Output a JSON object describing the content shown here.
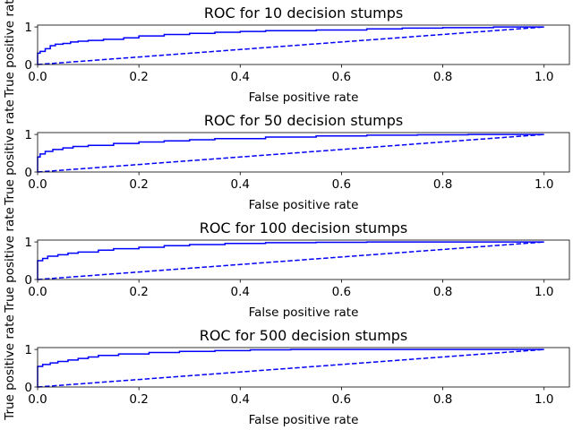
{
  "chart_data": [
    {
      "type": "line",
      "title": "ROC for 10 decision stumps",
      "xlabel": "False positive rate",
      "ylabel": "True positive rate",
      "xlim": [
        0,
        1.05
      ],
      "ylim": [
        0,
        1.05
      ],
      "xticks": [
        "0.0",
        "0.2",
        "0.4",
        "0.6",
        "0.8",
        "1.0"
      ],
      "yticks": [
        "0",
        "1"
      ],
      "grid": false,
      "series": [
        {
          "style": "solid",
          "color": "#0000ff",
          "x": [
            0,
            0,
            0.005,
            0.005,
            0.015,
            0.015,
            0.025,
            0.025,
            0.035,
            0.035,
            0.05,
            0.05,
            0.065,
            0.065,
            0.08,
            0.08,
            0.1,
            0.1,
            0.13,
            0.13,
            0.17,
            0.17,
            0.2,
            0.2,
            0.25,
            0.25,
            0.3,
            0.3,
            0.35,
            0.35,
            0.4,
            0.4,
            0.45,
            0.45,
            0.55,
            0.55,
            0.65,
            0.65,
            0.72,
            0.72,
            0.8,
            0.8,
            0.9,
            0.9,
            1.0
          ],
          "y": [
            0,
            0.3,
            0.3,
            0.35,
            0.35,
            0.42,
            0.42,
            0.5,
            0.5,
            0.54,
            0.54,
            0.56,
            0.56,
            0.6,
            0.6,
            0.62,
            0.62,
            0.64,
            0.64,
            0.67,
            0.67,
            0.71,
            0.71,
            0.76,
            0.76,
            0.8,
            0.8,
            0.83,
            0.83,
            0.86,
            0.86,
            0.88,
            0.88,
            0.9,
            0.9,
            0.92,
            0.92,
            0.95,
            0.95,
            0.97,
            0.97,
            0.98,
            0.98,
            1.0,
            1.0
          ]
        },
        {
          "style": "dashed",
          "color": "#0000ff",
          "x": [
            0,
            1.0
          ],
          "y": [
            0,
            1.0
          ]
        }
      ]
    },
    {
      "type": "line",
      "title": "ROC for 50 decision stumps",
      "xlabel": "False positive rate",
      "ylabel": "True positive rate",
      "xlim": [
        0,
        1.05
      ],
      "ylim": [
        0,
        1.05
      ],
      "xticks": [
        "0.0",
        "0.2",
        "0.4",
        "0.6",
        "0.8",
        "1.0"
      ],
      "yticks": [
        "0",
        "1"
      ],
      "grid": false,
      "series": [
        {
          "style": "solid",
          "color": "#0000ff",
          "x": [
            0,
            0,
            0.005,
            0.005,
            0.015,
            0.015,
            0.03,
            0.03,
            0.05,
            0.05,
            0.07,
            0.07,
            0.1,
            0.1,
            0.15,
            0.15,
            0.2,
            0.2,
            0.25,
            0.25,
            0.3,
            0.3,
            0.35,
            0.35,
            0.45,
            0.45,
            0.55,
            0.55,
            0.65,
            0.65,
            0.75,
            0.75,
            0.85,
            0.85,
            1.0
          ],
          "y": [
            0,
            0.4,
            0.4,
            0.48,
            0.48,
            0.55,
            0.55,
            0.6,
            0.6,
            0.64,
            0.64,
            0.68,
            0.68,
            0.71,
            0.71,
            0.76,
            0.76,
            0.8,
            0.8,
            0.83,
            0.83,
            0.86,
            0.86,
            0.89,
            0.89,
            0.93,
            0.93,
            0.96,
            0.96,
            0.98,
            0.98,
            0.99,
            0.99,
            1.0,
            1.0
          ]
        },
        {
          "style": "dashed",
          "color": "#0000ff",
          "x": [
            0,
            1.0
          ],
          "y": [
            0,
            1.0
          ]
        }
      ]
    },
    {
      "type": "line",
      "title": "ROC for 100 decision stumps",
      "xlabel": "False positive rate",
      "ylabel": "True positive rate",
      "xlim": [
        0,
        1.05
      ],
      "ylim": [
        0,
        1.05
      ],
      "xticks": [
        "0.0",
        "0.2",
        "0.4",
        "0.6",
        "0.8",
        "1.0"
      ],
      "yticks": [
        "0",
        "1"
      ],
      "grid": false,
      "series": [
        {
          "style": "solid",
          "color": "#0000ff",
          "x": [
            0,
            0,
            0.01,
            0.01,
            0.02,
            0.02,
            0.04,
            0.04,
            0.06,
            0.06,
            0.08,
            0.08,
            0.12,
            0.12,
            0.15,
            0.15,
            0.2,
            0.2,
            0.25,
            0.25,
            0.3,
            0.3,
            0.37,
            0.37,
            0.45,
            0.45,
            0.55,
            0.55,
            0.65,
            0.65,
            0.75,
            0.75,
            1.0
          ],
          "y": [
            0,
            0.5,
            0.5,
            0.56,
            0.56,
            0.62,
            0.62,
            0.66,
            0.66,
            0.7,
            0.7,
            0.73,
            0.73,
            0.78,
            0.78,
            0.82,
            0.82,
            0.86,
            0.86,
            0.9,
            0.9,
            0.93,
            0.93,
            0.96,
            0.96,
            0.98,
            0.98,
            0.99,
            0.99,
            1.0,
            1.0,
            1.0,
            1.0
          ]
        },
        {
          "style": "dashed",
          "color": "#0000ff",
          "x": [
            0,
            1.0
          ],
          "y": [
            0,
            1.0
          ]
        }
      ]
    },
    {
      "type": "line",
      "title": "ROC for 500 decision stumps",
      "xlabel": "False positive rate",
      "ylabel": "True positive rate",
      "xlim": [
        0,
        1.05
      ],
      "ylim": [
        0,
        1.05
      ],
      "xticks": [
        "0.0",
        "0.2",
        "0.4",
        "0.6",
        "0.8",
        "1.0"
      ],
      "yticks": [
        "0",
        "1"
      ],
      "grid": false,
      "series": [
        {
          "style": "solid",
          "color": "#0000ff",
          "x": [
            0,
            0,
            0.01,
            0.01,
            0.025,
            0.025,
            0.04,
            0.04,
            0.06,
            0.06,
            0.08,
            0.08,
            0.1,
            0.1,
            0.12,
            0.12,
            0.16,
            0.16,
            0.22,
            0.22,
            0.28,
            0.28,
            0.35,
            0.35,
            0.42,
            0.42,
            0.5,
            0.5,
            0.6,
            0.6,
            1.0
          ],
          "y": [
            0,
            0.55,
            0.55,
            0.6,
            0.6,
            0.64,
            0.64,
            0.68,
            0.68,
            0.72,
            0.72,
            0.76,
            0.76,
            0.8,
            0.8,
            0.84,
            0.84,
            0.88,
            0.88,
            0.92,
            0.92,
            0.95,
            0.95,
            0.97,
            0.97,
            0.99,
            0.99,
            1.0,
            1.0,
            1.0,
            1.0
          ]
        },
        {
          "style": "dashed",
          "color": "#0000ff",
          "x": [
            0,
            1.0
          ],
          "y": [
            0,
            1.0
          ]
        }
      ]
    }
  ]
}
